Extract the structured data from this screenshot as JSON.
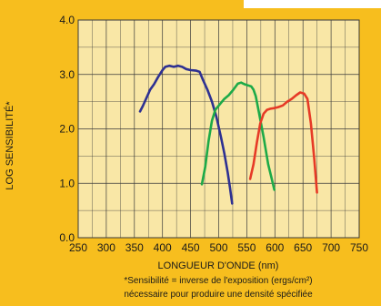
{
  "colors": {
    "background": "#F7BE1E",
    "plot_area": "#F9E7A6",
    "grid": "#3a3a3a",
    "blue": "#2E3192",
    "green": "#1DAA48",
    "red": "#E63A26"
  },
  "chart_data": {
    "type": "line",
    "title": "",
    "xlabel": "LONGUEUR D'ONDE (nm)",
    "ylabel": "LOG SENSIBILITÉ*",
    "xlim": [
      250,
      750
    ],
    "ylim": [
      0.0,
      4.0
    ],
    "x_ticks": [
      250,
      300,
      350,
      400,
      450,
      500,
      550,
      600,
      650,
      700,
      750
    ],
    "x_tick_labels": [
      "250",
      "300",
      "350",
      "400",
      "450",
      "500",
      "550",
      "600",
      "650",
      "700",
      "750"
    ],
    "y_ticks": [
      0.0,
      1.0,
      2.0,
      3.0,
      4.0
    ],
    "y_tick_labels": [
      "0.0",
      "1.0",
      "2.0",
      "3.0",
      "4.0"
    ],
    "grid": true,
    "footnote": [
      "*Sensibilité = inverse de l'exposition (ergs/cm²)",
      "nécessaire pour produire une densité spécifiée"
    ],
    "series": [
      {
        "color_key": "blue",
        "points": [
          [
            360,
            2.32
          ],
          [
            365,
            2.42
          ],
          [
            372,
            2.58
          ],
          [
            378,
            2.72
          ],
          [
            385,
            2.82
          ],
          [
            392,
            2.95
          ],
          [
            400,
            3.08
          ],
          [
            405,
            3.14
          ],
          [
            412,
            3.16
          ],
          [
            420,
            3.14
          ],
          [
            428,
            3.16
          ],
          [
            435,
            3.14
          ],
          [
            442,
            3.1
          ],
          [
            450,
            3.08
          ],
          [
            460,
            3.07
          ],
          [
            466,
            3.05
          ],
          [
            472,
            2.9
          ],
          [
            480,
            2.72
          ],
          [
            488,
            2.5
          ],
          [
            496,
            2.22
          ],
          [
            504,
            1.85
          ],
          [
            510,
            1.55
          ],
          [
            516,
            1.2
          ],
          [
            520,
            0.92
          ],
          [
            524,
            0.63
          ]
        ]
      },
      {
        "color_key": "green",
        "points": [
          [
            470,
            0.98
          ],
          [
            476,
            1.3
          ],
          [
            482,
            1.78
          ],
          [
            488,
            2.15
          ],
          [
            494,
            2.35
          ],
          [
            502,
            2.45
          ],
          [
            510,
            2.55
          ],
          [
            518,
            2.62
          ],
          [
            526,
            2.72
          ],
          [
            534,
            2.83
          ],
          [
            540,
            2.85
          ],
          [
            546,
            2.82
          ],
          [
            552,
            2.8
          ],
          [
            558,
            2.78
          ],
          [
            562,
            2.72
          ],
          [
            566,
            2.6
          ],
          [
            572,
            2.28
          ],
          [
            580,
            1.85
          ],
          [
            588,
            1.35
          ],
          [
            594,
            1.1
          ],
          [
            599,
            0.88
          ]
        ]
      },
      {
        "color_key": "red",
        "points": [
          [
            556,
            1.08
          ],
          [
            562,
            1.35
          ],
          [
            568,
            1.75
          ],
          [
            574,
            2.1
          ],
          [
            580,
            2.28
          ],
          [
            586,
            2.35
          ],
          [
            592,
            2.37
          ],
          [
            598,
            2.38
          ],
          [
            606,
            2.4
          ],
          [
            614,
            2.43
          ],
          [
            622,
            2.5
          ],
          [
            630,
            2.55
          ],
          [
            638,
            2.62
          ],
          [
            645,
            2.67
          ],
          [
            652,
            2.65
          ],
          [
            658,
            2.55
          ],
          [
            664,
            2.1
          ],
          [
            670,
            1.45
          ],
          [
            675,
            0.83
          ]
        ]
      }
    ]
  }
}
